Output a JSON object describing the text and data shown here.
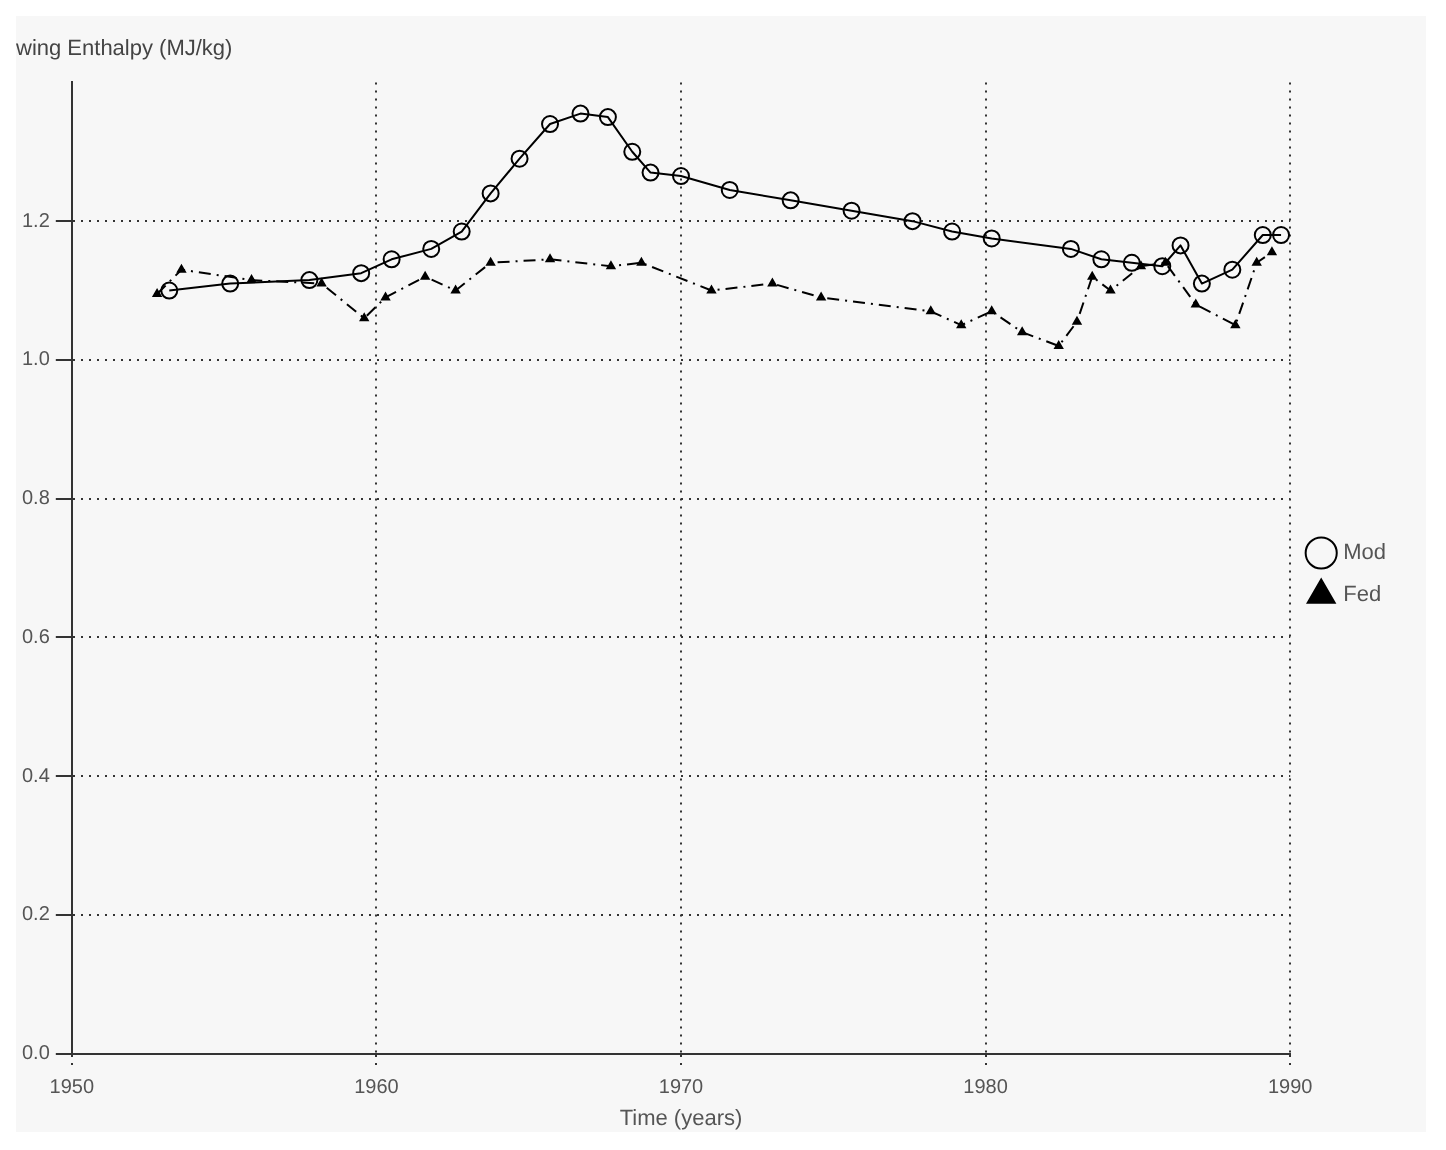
{
  "chart_data": {
    "type": "line",
    "ylabel": "wing Enthalpy (MJ/kg)",
    "xlabel": "Time (years)",
    "xlim": [
      1950,
      1990
    ],
    "xticks": [
      1950,
      1960,
      1970,
      1980,
      1990
    ],
    "ylim": [
      0,
      1.4
    ],
    "yticks": [
      {
        "value": 0,
        "label": "0.0"
      },
      {
        "value": 0.2,
        "label": "0.2"
      },
      {
        "value": 0.4,
        "label": "0.4"
      },
      {
        "value": 0.6,
        "label": "0.6"
      },
      {
        "value": 0.8,
        "label": "0.8"
      },
      {
        "value": 1.0,
        "label": "1.0"
      },
      {
        "value": 1.2,
        "label": "1.2"
      }
    ],
    "grid": true,
    "legend": "right",
    "series": [
      {
        "name": "Mod",
        "color": "#000000",
        "marker": "circle",
        "line_style": "solid",
        "x": [
          1953.2,
          1955.2,
          1957.8,
          1959.5,
          1960.5,
          1961.8,
          1962.8,
          1963.75,
          1964.7,
          1965.7,
          1966.7,
          1967.6,
          1968.4,
          1969.0,
          1970.0,
          1971.6,
          1973.6,
          1975.6,
          1977.6,
          1978.9,
          1980.2,
          1982.8,
          1983.8,
          1984.8,
          1985.8,
          1986.4,
          1987.1,
          1988.1,
          1989.1,
          1989.7
        ],
        "values": [
          1.1,
          1.11,
          1.115,
          1.125,
          1.145,
          1.16,
          1.185,
          1.24,
          1.29,
          1.34,
          1.355,
          1.35,
          1.3,
          1.27,
          1.265,
          1.245,
          1.23,
          1.215,
          1.2,
          1.185,
          1.175,
          1.16,
          1.145,
          1.14,
          1.135,
          1.165,
          1.11,
          1.13,
          1.18,
          1.18
        ]
      },
      {
        "name": "Fed",
        "color": "#000000",
        "marker": "triangle",
        "line_style": "dashed",
        "x": [
          1952.8,
          1953.6,
          1955.9,
          1958.2,
          1959.6,
          1960.3,
          1961.6,
          1962.6,
          1963.75,
          1965.7,
          1967.7,
          1968.7,
          1971.0,
          1973.0,
          1974.6,
          1978.2,
          1979.2,
          1980.2,
          1981.2,
          1982.4,
          1983.0,
          1983.5,
          1984.1,
          1985.1,
          1985.9,
          1986.9,
          1988.2,
          1988.9,
          1989.4
        ],
        "values": [
          1.095,
          1.13,
          1.115,
          1.11,
          1.06,
          1.09,
          1.12,
          1.1,
          1.14,
          1.145,
          1.135,
          1.14,
          1.1,
          1.11,
          1.09,
          1.07,
          1.05,
          1.07,
          1.04,
          1.02,
          1.055,
          1.12,
          1.1,
          1.135,
          1.14,
          1.08,
          1.05,
          1.14,
          1.155
        ]
      }
    ]
  }
}
